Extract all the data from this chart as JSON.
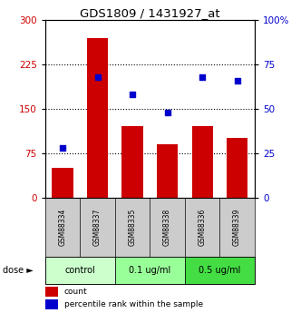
{
  "title": "GDS1809 / 1431927_at",
  "categories": [
    "GSM88334",
    "GSM88337",
    "GSM88335",
    "GSM88338",
    "GSM88336",
    "GSM88339"
  ],
  "bar_values": [
    50,
    270,
    120,
    90,
    120,
    100
  ],
  "percentile_values": [
    28,
    68,
    58,
    48,
    68,
    66
  ],
  "bar_color": "#cc0000",
  "dot_color": "#0000cc",
  "left_ylim": [
    0,
    300
  ],
  "right_ylim": [
    0,
    100
  ],
  "left_yticks": [
    0,
    75,
    150,
    225,
    300
  ],
  "right_yticks": [
    0,
    25,
    50,
    75,
    100
  ],
  "right_yticklabels": [
    "0",
    "25",
    "50",
    "75",
    "100%"
  ],
  "hline_values": [
    75,
    150,
    225
  ],
  "groups": [
    {
      "label": "control",
      "indices": [
        0,
        1
      ],
      "color": "#ccffcc"
    },
    {
      "label": "0.1 ug/ml",
      "indices": [
        2,
        3
      ],
      "color": "#99ff99"
    },
    {
      "label": "0.5 ug/ml",
      "indices": [
        4,
        5
      ],
      "color": "#44dd44"
    }
  ],
  "dose_label": "dose ►",
  "legend_count_label": "count",
  "legend_pct_label": "percentile rank within the sample",
  "left_axis_color": "#cc0000",
  "right_axis_color": "#0000cc",
  "background_color": "#ffffff",
  "sample_label_bg": "#cccccc"
}
